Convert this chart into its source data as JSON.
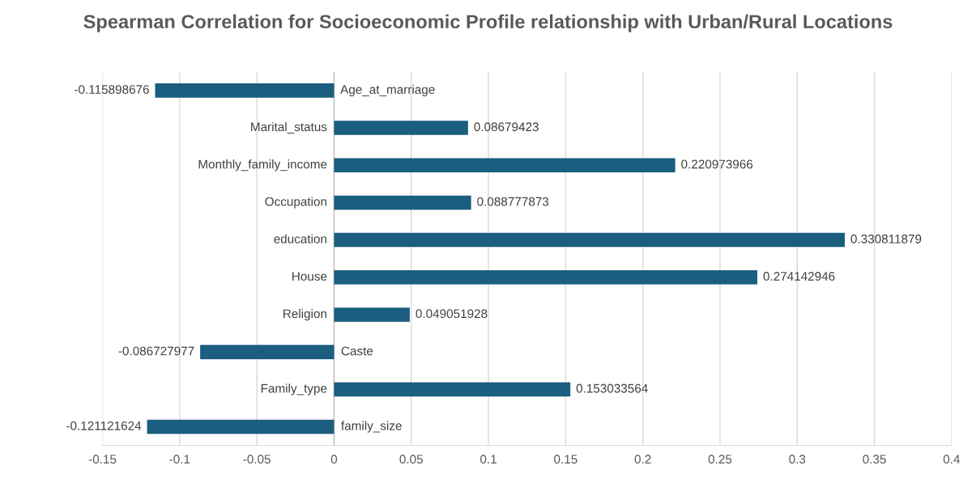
{
  "chart_data": {
    "type": "bar",
    "orientation": "horizontal",
    "title": "Spearman Correlation for Socioeconomic Profile relationship with Urban/Rural Locations",
    "categories": [
      "Age_at_marriage",
      "Marital_status",
      "Monthly_family_income",
      "Occupation",
      "education",
      "House",
      "Religion",
      "Caste",
      "Family_type",
      "family_size"
    ],
    "values": [
      -0.115898676,
      0.08679423,
      0.220973966,
      0.088777873,
      0.330811879,
      0.274142946,
      0.049051928,
      -0.086727977,
      0.153033564,
      -0.121121624
    ],
    "color": "#1b5e7f",
    "xlim": [
      -0.15,
      0.4
    ],
    "xticks": [
      -0.15,
      -0.1,
      -0.05,
      0,
      0.05,
      0.1,
      0.15,
      0.2,
      0.25,
      0.3,
      0.35,
      0.4
    ],
    "grid": "x",
    "data_labels": true
  }
}
